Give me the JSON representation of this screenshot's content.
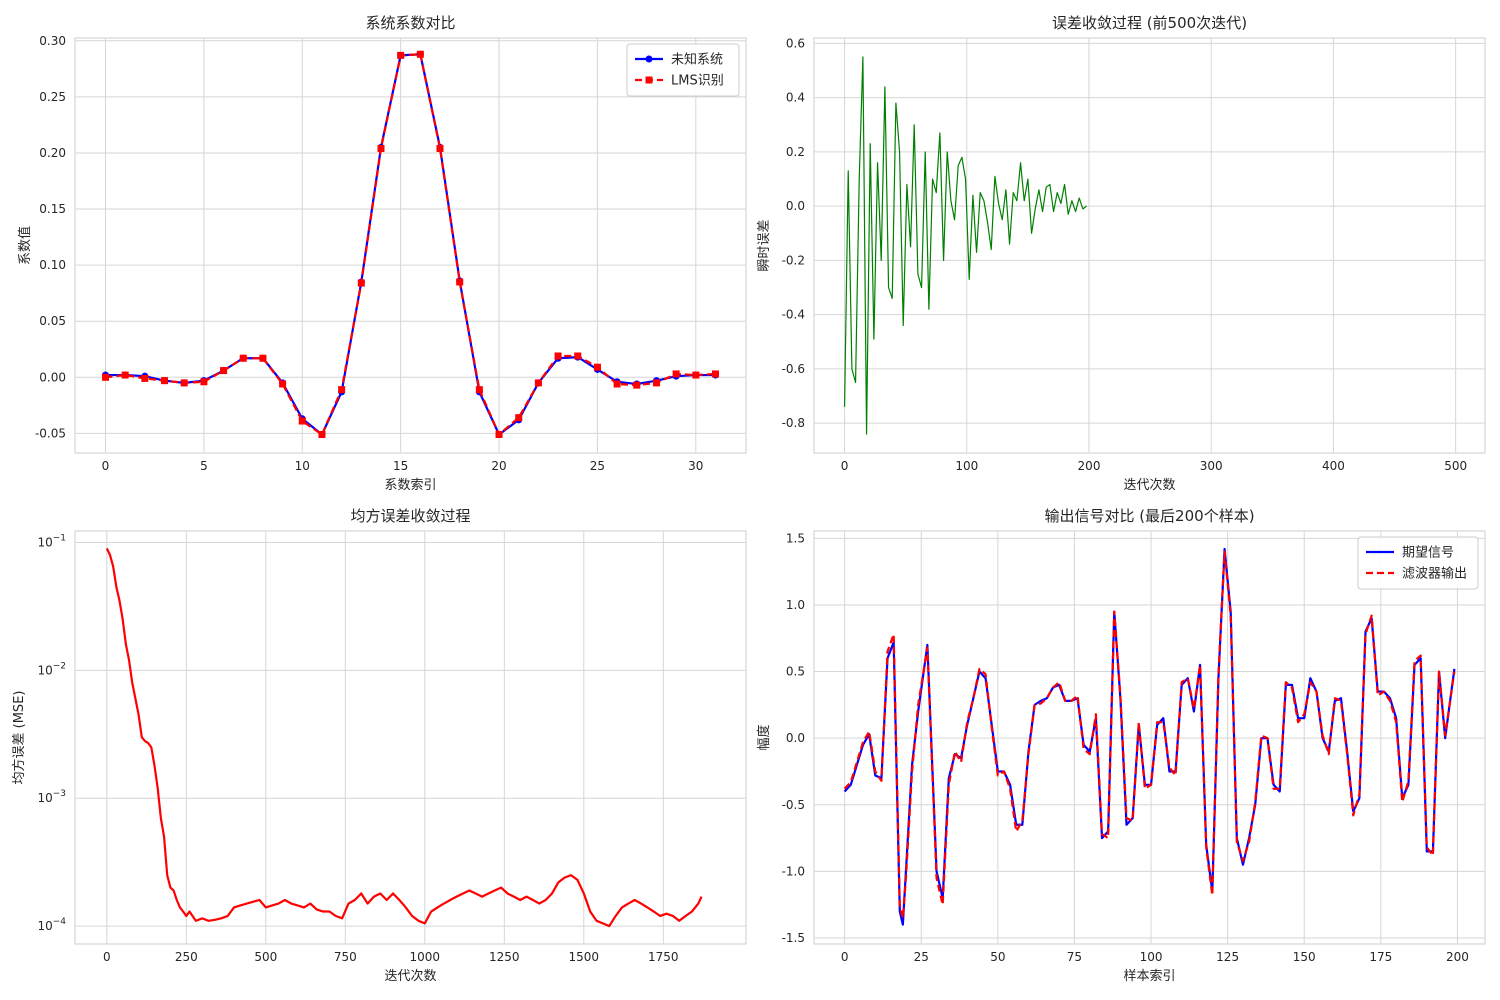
{
  "chart_data": [
    {
      "type": "line",
      "title": "系统系数对比",
      "xlabel": "系数索引",
      "ylabel": "系数值",
      "xlim": [
        -1.55,
        32.55
      ],
      "ylim": [
        -0.0675,
        0.3025
      ],
      "xticks": [
        0,
        5,
        10,
        15,
        20,
        25,
        30
      ],
      "yticks": [
        -0.05,
        0.0,
        0.05,
        0.1,
        0.15,
        0.2,
        0.25,
        0.3
      ],
      "ytick_labels": [
        "-0.05",
        "0.00",
        "0.05",
        "0.10",
        "0.15",
        "0.20",
        "0.25",
        "0.30"
      ],
      "grid": true,
      "legend": "top-right",
      "x": [
        0,
        1,
        2,
        3,
        4,
        5,
        6,
        7,
        8,
        9,
        10,
        11,
        12,
        13,
        14,
        15,
        16,
        17,
        18,
        19,
        20,
        21,
        22,
        23,
        24,
        25,
        26,
        27,
        28,
        29,
        30,
        31
      ],
      "series": [
        {
          "name": "未知系统",
          "color": "#0000ff",
          "style": "solid",
          "marker": "circle",
          "values": [
            0.002,
            0.002,
            0.001,
            -0.003,
            -0.005,
            -0.003,
            0.006,
            0.017,
            0.017,
            -0.005,
            -0.037,
            -0.051,
            -0.013,
            0.085,
            0.205,
            0.287,
            0.288,
            0.205,
            0.086,
            -0.013,
            -0.051,
            -0.038,
            -0.005,
            0.017,
            0.018,
            0.007,
            -0.004,
            -0.006,
            -0.003,
            0.001,
            0.002,
            0.002
          ]
        },
        {
          "name": "LMS识别",
          "color": "#ff0000",
          "style": "dashed",
          "marker": "square",
          "values": [
            0.0,
            0.002,
            -0.001,
            -0.003,
            -0.005,
            -0.004,
            0.006,
            0.017,
            0.017,
            -0.006,
            -0.039,
            -0.051,
            -0.011,
            0.084,
            0.204,
            0.287,
            0.288,
            0.204,
            0.085,
            -0.011,
            -0.051,
            -0.036,
            -0.005,
            0.019,
            0.019,
            0.009,
            -0.006,
            -0.007,
            -0.005,
            0.003,
            0.002,
            0.003
          ]
        }
      ]
    },
    {
      "type": "line",
      "title": "误差收敛过程 (前500次迭代)",
      "xlabel": "迭代次数",
      "ylabel": "瞬时误差",
      "xlim": [
        -25,
        524
      ],
      "ylim": [
        -0.91,
        0.62
      ],
      "xticks": [
        0,
        100,
        200,
        300,
        400,
        500
      ],
      "yticks": [
        -0.8,
        -0.6,
        -0.4,
        -0.2,
        0.0,
        0.2,
        0.4,
        0.6
      ],
      "ytick_labels": [
        "-0.8",
        "-0.6",
        "-0.4",
        "-0.2",
        "0.0",
        "0.2",
        "0.4",
        "0.6"
      ],
      "grid": true,
      "series": [
        {
          "color": "#008000",
          "style": "solid",
          "x": [
            0,
            3,
            6,
            9,
            12,
            15,
            18,
            21,
            24,
            27,
            30,
            33,
            36,
            39,
            42,
            45,
            48,
            51,
            54,
            57,
            60,
            63,
            66,
            69,
            72,
            75,
            78,
            81,
            84,
            87,
            90,
            93,
            96,
            99,
            102,
            105,
            108,
            111,
            114,
            117,
            120,
            123,
            126,
            129,
            132,
            135,
            138,
            141,
            144,
            147,
            150,
            153,
            156,
            159,
            162,
            165,
            168,
            171,
            174,
            177,
            180,
            183,
            186,
            189,
            192,
            195,
            198
          ],
          "values": [
            -0.74,
            0.13,
            -0.6,
            -0.65,
            0.1,
            0.55,
            -0.84,
            0.23,
            -0.49,
            0.16,
            -0.2,
            0.44,
            -0.3,
            -0.34,
            0.38,
            0.2,
            -0.44,
            0.08,
            -0.15,
            0.3,
            -0.25,
            -0.3,
            0.2,
            -0.38,
            0.1,
            0.05,
            0.27,
            -0.2,
            0.2,
            0.02,
            -0.05,
            0.15,
            0.18,
            0.1,
            -0.27,
            0.04,
            -0.17,
            0.05,
            0.02,
            -0.06,
            -0.16,
            0.11,
            0.01,
            -0.05,
            0.06,
            -0.14,
            0.05,
            0.02,
            0.16,
            0.02,
            0.1,
            -0.1,
            -0.01,
            0.06,
            -0.02,
            0.07,
            0.08,
            -0.02,
            0.05,
            0.01,
            0.08,
            -0.03,
            0.02,
            -0.02,
            0.03,
            -0.01,
            0.0
          ]
        }
      ]
    },
    {
      "type": "line",
      "title": "均方误差收敛过程",
      "xlabel": "迭代次数",
      "ylabel": "均方误差 (MSE)",
      "xlim": [
        -100,
        2010
      ],
      "ylim_log10": [
        -4.14,
        -0.91
      ],
      "yscale": "log",
      "xticks": [
        0,
        250,
        500,
        750,
        1000,
        1250,
        1500,
        1750
      ],
      "yticks": [
        -4,
        -3,
        -2,
        -1
      ],
      "grid": true,
      "series": [
        {
          "color": "#ff0000",
          "style": "solid",
          "x": [
            0,
            10,
            20,
            30,
            40,
            50,
            60,
            70,
            80,
            90,
            100,
            110,
            120,
            130,
            140,
            150,
            160,
            170,
            180,
            190,
            200,
            210,
            220,
            230,
            240,
            250,
            260,
            280,
            300,
            320,
            340,
            360,
            380,
            400,
            420,
            440,
            460,
            480,
            500,
            520,
            540,
            560,
            580,
            600,
            620,
            640,
            660,
            680,
            700,
            720,
            740,
            760,
            780,
            800,
            820,
            840,
            860,
            880,
            900,
            920,
            940,
            960,
            980,
            1000,
            1020,
            1040,
            1060,
            1080,
            1100,
            1120,
            1140,
            1160,
            1180,
            1200,
            1220,
            1240,
            1260,
            1280,
            1300,
            1320,
            1340,
            1360,
            1380,
            1400,
            1420,
            1440,
            1460,
            1480,
            1500,
            1520,
            1540,
            1560,
            1580,
            1600,
            1620,
            1640,
            1660,
            1680,
            1700,
            1720,
            1740,
            1760,
            1780,
            1800,
            1820,
            1840,
            1860,
            1870
          ],
          "values": [
            0.09,
            0.08,
            0.065,
            0.045,
            0.035,
            0.025,
            0.016,
            0.012,
            0.008,
            0.006,
            0.0045,
            0.003,
            0.0028,
            0.0027,
            0.0025,
            0.0018,
            0.0012,
            0.0007,
            0.0005,
            0.00025,
            0.0002,
            0.00019,
            0.00016,
            0.00014,
            0.00013,
            0.00012,
            0.00013,
            0.00011,
            0.000115,
            0.00011,
            0.000112,
            0.000115,
            0.00012,
            0.00014,
            0.000145,
            0.00015,
            0.000155,
            0.00016,
            0.00014,
            0.000145,
            0.00015,
            0.00016,
            0.00015,
            0.000145,
            0.00014,
            0.00015,
            0.000135,
            0.00013,
            0.00013,
            0.00012,
            0.000115,
            0.00015,
            0.00016,
            0.00018,
            0.00015,
            0.00017,
            0.00018,
            0.00016,
            0.00018,
            0.00016,
            0.00014,
            0.00012,
            0.00011,
            0.000105,
            0.00013,
            0.00014,
            0.00015,
            0.00016,
            0.00017,
            0.00018,
            0.00019,
            0.00018,
            0.00017,
            0.00018,
            0.00019,
            0.0002,
            0.00018,
            0.00017,
            0.00016,
            0.00017,
            0.00016,
            0.00015,
            0.00016,
            0.00018,
            0.00022,
            0.00024,
            0.00025,
            0.00023,
            0.00018,
            0.00013,
            0.00011,
            0.000105,
            0.0001,
            0.00012,
            0.00014,
            0.00015,
            0.00016,
            0.00015,
            0.00014,
            0.00013,
            0.00012,
            0.000125,
            0.00012,
            0.00011,
            0.00012,
            0.00013,
            0.00015,
            0.00017
          ]
        }
      ]
    },
    {
      "type": "line",
      "title": "输出信号对比 (最后200个样本)",
      "xlabel": "样本索引",
      "ylabel": "幅度",
      "xlim": [
        -10,
        209
      ],
      "ylim": [
        -1.545,
        1.555
      ],
      "xticks": [
        0,
        25,
        50,
        75,
        100,
        125,
        150,
        175,
        200
      ],
      "yticks": [
        -1.5,
        -1.0,
        -0.5,
        0.0,
        0.5,
        1.0,
        1.5
      ],
      "ytick_labels": [
        "-1.5",
        "-1.0",
        "-0.5",
        "0.0",
        "0.5",
        "1.0",
        "1.5"
      ],
      "grid": true,
      "legend": "top-right",
      "x": [
        0,
        2,
        4,
        6,
        8,
        10,
        12,
        14,
        16,
        18,
        19,
        20,
        22,
        24,
        27,
        30,
        32,
        34,
        36,
        38,
        40,
        42,
        44,
        46,
        48,
        50,
        52,
        54,
        56,
        58,
        60,
        62,
        64,
        66,
        68,
        70,
        72,
        74,
        76,
        78,
        80,
        82,
        84,
        86,
        88,
        90,
        92,
        94,
        96,
        98,
        100,
        102,
        104,
        106,
        108,
        110,
        112,
        114,
        116,
        118,
        120,
        122,
        124,
        126,
        128,
        130,
        132,
        134,
        136,
        138,
        140,
        142,
        144,
        146,
        148,
        150,
        152,
        154,
        156,
        158,
        160,
        162,
        164,
        166,
        168,
        170,
        172,
        174,
        176,
        178,
        180,
        182,
        184,
        186,
        188,
        190,
        192,
        194,
        196,
        199
      ],
      "series": [
        {
          "name": "期望信号",
          "color": "#0000ff",
          "style": "solid",
          "values": [
            -0.4,
            -0.35,
            -0.2,
            -0.05,
            0.03,
            -0.28,
            -0.3,
            0.6,
            0.72,
            -1.3,
            -1.4,
            -1.0,
            -0.2,
            0.2,
            0.7,
            -1.0,
            -1.2,
            -0.3,
            -0.12,
            -0.15,
            0.1,
            0.3,
            0.5,
            0.45,
            0.1,
            -0.25,
            -0.25,
            -0.35,
            -0.65,
            -0.65,
            -0.1,
            0.25,
            0.28,
            0.3,
            0.38,
            0.4,
            0.28,
            0.28,
            0.3,
            -0.05,
            -0.1,
            0.15,
            -0.75,
            -0.7,
            0.95,
            0.3,
            -0.65,
            -0.6,
            0.1,
            -0.35,
            -0.35,
            0.1,
            0.15,
            -0.25,
            -0.25,
            0.4,
            0.45,
            0.2,
            0.55,
            -0.8,
            -1.15,
            0.45,
            1.42,
            0.95,
            -0.75,
            -0.95,
            -0.75,
            -0.5,
            0.0,
            0.0,
            -0.35,
            -0.4,
            0.4,
            0.4,
            0.15,
            0.15,
            0.45,
            0.35,
            0.0,
            -0.1,
            0.28,
            0.3,
            -0.1,
            -0.55,
            -0.45,
            0.8,
            0.9,
            0.35,
            0.35,
            0.3,
            0.15,
            -0.45,
            -0.35,
            0.55,
            0.6,
            -0.85,
            -0.85,
            0.5,
            0.0,
            0.52
          ]
        },
        {
          "name": "滤波器输出",
          "color": "#ff0000",
          "style": "dashed",
          "values": [
            -0.38,
            -0.33,
            -0.18,
            -0.03,
            0.05,
            -0.25,
            -0.32,
            0.65,
            0.78,
            -1.25,
            -1.35,
            -1.05,
            -0.25,
            0.25,
            0.68,
            -1.05,
            -1.25,
            -0.35,
            -0.1,
            -0.18,
            0.12,
            0.3,
            0.52,
            0.48,
            0.08,
            -0.28,
            -0.25,
            -0.38,
            -0.7,
            -0.62,
            -0.12,
            0.25,
            0.26,
            0.3,
            0.38,
            0.42,
            0.28,
            0.28,
            0.32,
            -0.08,
            -0.12,
            0.18,
            -0.72,
            -0.75,
            0.95,
            0.32,
            -0.6,
            -0.62,
            0.12,
            -0.38,
            -0.35,
            0.12,
            0.12,
            -0.22,
            -0.28,
            0.42,
            0.45,
            0.22,
            0.55,
            -0.82,
            -1.18,
            0.48,
            1.4,
            0.92,
            -0.78,
            -0.92,
            -0.78,
            -0.48,
            0.02,
            0.0,
            -0.38,
            -0.38,
            0.42,
            0.38,
            0.12,
            0.18,
            0.42,
            0.35,
            0.02,
            -0.12,
            0.3,
            0.28,
            -0.12,
            -0.58,
            -0.42,
            0.78,
            0.92,
            0.32,
            0.35,
            0.28,
            0.12,
            -0.48,
            -0.32,
            0.58,
            0.62,
            -0.82,
            -0.88,
            0.5,
            0.02,
            0.5
          ]
        }
      ]
    }
  ]
}
